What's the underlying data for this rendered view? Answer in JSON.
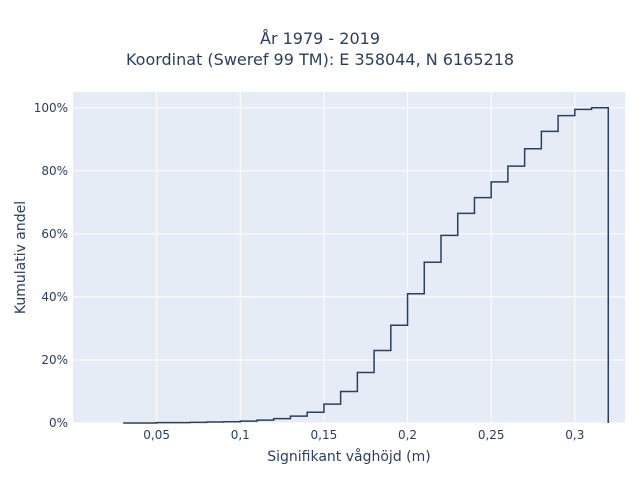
{
  "chart_data": {
    "type": "step",
    "title_line1": "År 1979 - 2019",
    "title_line2": "Koordinat (Sweref 99 TM): E 358044, N 6165218",
    "xlabel": "Signifikant våghöjd (m)",
    "ylabel": "Kumulativ andel",
    "xlim": [
      0.0,
      0.33
    ],
    "ylim": [
      0,
      1.05
    ],
    "xticks": [
      {
        "value": 0.05,
        "label": "0,05"
      },
      {
        "value": 0.1,
        "label": "0,1"
      },
      {
        "value": 0.15,
        "label": "0,15"
      },
      {
        "value": 0.2,
        "label": "0,2"
      },
      {
        "value": 0.25,
        "label": "0,25"
      },
      {
        "value": 0.3,
        "label": "0,3"
      }
    ],
    "yticks": [
      {
        "value": 0.0,
        "label": "0%"
      },
      {
        "value": 0.2,
        "label": "20%"
      },
      {
        "value": 0.4,
        "label": "40%"
      },
      {
        "value": 0.6,
        "label": "60%"
      },
      {
        "value": 0.8,
        "label": "80%"
      },
      {
        "value": 1.0,
        "label": "100%"
      }
    ],
    "grid": true,
    "line_color": "#2a3f5f",
    "background_color": "#e5ecf6",
    "x": [
      0.03,
      0.04,
      0.05,
      0.06,
      0.07,
      0.08,
      0.09,
      0.1,
      0.11,
      0.12,
      0.13,
      0.14,
      0.15,
      0.16,
      0.17,
      0.18,
      0.19,
      0.2,
      0.21,
      0.22,
      0.23,
      0.24,
      0.25,
      0.26,
      0.27,
      0.28,
      0.29,
      0.3,
      0.31,
      0.32
    ],
    "y": [
      0.0,
      0.0,
      0.001,
      0.001,
      0.002,
      0.003,
      0.004,
      0.006,
      0.009,
      0.014,
      0.022,
      0.034,
      0.06,
      0.1,
      0.16,
      0.23,
      0.31,
      0.41,
      0.51,
      0.595,
      0.665,
      0.715,
      0.765,
      0.815,
      0.87,
      0.925,
      0.975,
      0.995,
      1.0,
      1.0
    ]
  }
}
